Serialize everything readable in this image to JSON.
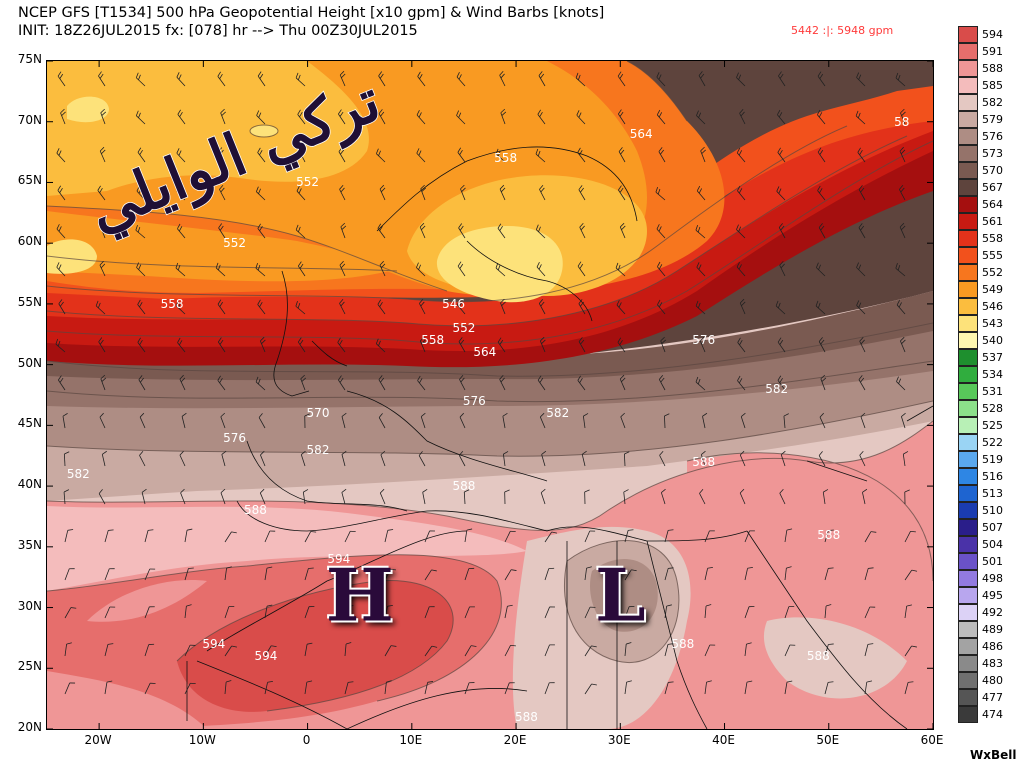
{
  "header": {
    "title_line1": "NCEP GFS [T1534] 500 hPa Geopotential Height [x10 gpm] & Wind Barbs [knots]",
    "title_line2": "INIT: 18Z26JUL2015 fx: [078] hr --> Thu 00Z30JUL2015",
    "range_text": "5442 :|: 5948 gpm"
  },
  "axes": {
    "lat_labels": [
      "75N",
      "70N",
      "65N",
      "60N",
      "55N",
      "50N",
      "45N",
      "40N",
      "35N",
      "30N",
      "25N",
      "20N"
    ],
    "lon_labels": [
      "20W",
      "10W",
      "0",
      "10E",
      "20E",
      "30E",
      "40E",
      "50E",
      "60E"
    ]
  },
  "legend": {
    "entries": [
      {
        "label": "594",
        "color": "#d94c4a"
      },
      {
        "label": "591",
        "color": "#e66e6c"
      },
      {
        "label": "588",
        "color": "#ef9696"
      },
      {
        "label": "585",
        "color": "#f4bcbc"
      },
      {
        "label": "582",
        "color": "#e4c8c2"
      },
      {
        "label": "579",
        "color": "#c9aaa2"
      },
      {
        "label": "576",
        "color": "#ae8d84"
      },
      {
        "label": "573",
        "color": "#95736a"
      },
      {
        "label": "570",
        "color": "#7a5a51"
      },
      {
        "label": "567",
        "color": "#5e443d"
      },
      {
        "label": "564",
        "color": "#a50f0f"
      },
      {
        "label": "561",
        "color": "#c81a12"
      },
      {
        "label": "558",
        "color": "#e3321a"
      },
      {
        "label": "555",
        "color": "#f2511c"
      },
      {
        "label": "552",
        "color": "#f7761e"
      },
      {
        "label": "549",
        "color": "#f99a22"
      },
      {
        "label": "546",
        "color": "#fbbd3e"
      },
      {
        "label": "543",
        "color": "#fde27a"
      },
      {
        "label": "540",
        "color": "#fff7b0"
      },
      {
        "label": "537",
        "color": "#1e8f2e"
      },
      {
        "label": "534",
        "color": "#30ad3e"
      },
      {
        "label": "531",
        "color": "#58c85a"
      },
      {
        "label": "528",
        "color": "#8ce08a"
      },
      {
        "label": "525",
        "color": "#b8f0b6"
      },
      {
        "label": "522",
        "color": "#9ad4f4"
      },
      {
        "label": "519",
        "color": "#5aa8ee"
      },
      {
        "label": "516",
        "color": "#2e86e4"
      },
      {
        "label": "513",
        "color": "#1e64d0"
      },
      {
        "label": "510",
        "color": "#1a3cb0"
      },
      {
        "label": "507",
        "color": "#2a1e8a"
      },
      {
        "label": "504",
        "color": "#4a32a8"
      },
      {
        "label": "501",
        "color": "#6a52c8"
      },
      {
        "label": "498",
        "color": "#927ae0"
      },
      {
        "label": "495",
        "color": "#b8a6ee"
      },
      {
        "label": "492",
        "color": "#dcd2f6"
      },
      {
        "label": "489",
        "color": "#bdbdbd"
      },
      {
        "label": "486",
        "color": "#a3a3a3"
      },
      {
        "label": "483",
        "color": "#8a8a8a"
      },
      {
        "label": "480",
        "color": "#707070"
      },
      {
        "label": "477",
        "color": "#555555"
      },
      {
        "label": "474",
        "color": "#3a3a3a"
      }
    ]
  },
  "contour_labels": [
    {
      "text": "552",
      "lat": 65,
      "lon": 0
    },
    {
      "text": "558",
      "lat": 67,
      "lon": 19
    },
    {
      "text": "564",
      "lat": 69,
      "lon": 32
    },
    {
      "text": "552",
      "lat": 60,
      "lon": -7
    },
    {
      "text": "558",
      "lat": 55,
      "lon": -13
    },
    {
      "text": "546",
      "lat": 55,
      "lon": 14
    },
    {
      "text": "552",
      "lat": 53,
      "lon": 15
    },
    {
      "text": "558",
      "lat": 52,
      "lon": 12
    },
    {
      "text": "564",
      "lat": 51,
      "lon": 17
    },
    {
      "text": "576",
      "lat": 52,
      "lon": 38
    },
    {
      "text": "582",
      "lat": 48,
      "lon": 45
    },
    {
      "text": "570",
      "lat": 46,
      "lon": 1
    },
    {
      "text": "576",
      "lat": 47,
      "lon": 16
    },
    {
      "text": "582",
      "lat": 46,
      "lon": 24
    },
    {
      "text": "576",
      "lat": 44,
      "lon": -7
    },
    {
      "text": "582",
      "lat": 41,
      "lon": -22
    },
    {
      "text": "582",
      "lat": 43,
      "lon": 1
    },
    {
      "text": "588",
      "lat": 42,
      "lon": 38
    },
    {
      "text": "588",
      "lat": 40,
      "lon": 15
    },
    {
      "text": "588",
      "lat": 38,
      "lon": -5
    },
    {
      "text": "588",
      "lat": 36,
      "lon": 50
    },
    {
      "text": "594",
      "lat": 34,
      "lon": 3
    },
    {
      "text": "594",
      "lat": 27,
      "lon": -9
    },
    {
      "text": "594",
      "lat": 26,
      "lon": -4
    },
    {
      "text": "5",
      "lat": 31,
      "lon": 29
    },
    {
      "text": "588",
      "lat": 27,
      "lon": 36
    },
    {
      "text": "588",
      "lat": 26,
      "lon": 49
    },
    {
      "text": "588",
      "lat": 21,
      "lon": 21
    },
    {
      "text": "58",
      "lat": 70,
      "lon": 57
    }
  ],
  "centers": [
    {
      "text": "H",
      "lat": 31,
      "lon": 5
    },
    {
      "text": "L",
      "lat": 31,
      "lon": 30
    }
  ],
  "watermark_text": "تركي الوايلي",
  "branding": "WxBell"
}
